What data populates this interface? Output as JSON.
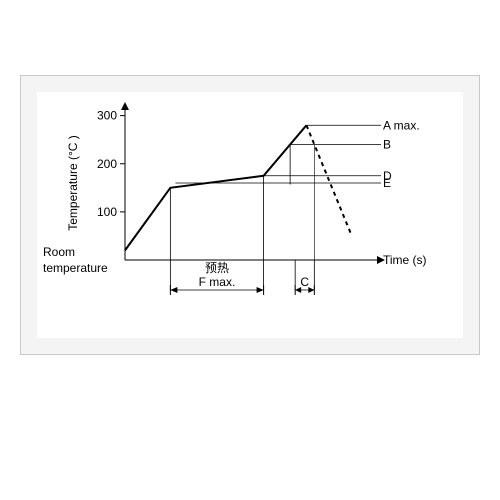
{
  "chart": {
    "type": "line",
    "background_color": "#ffffff",
    "frame_color": "#c8c8c8",
    "panel_bg": "#f4f4f4",
    "axis_color": "#000000",
    "line_color": "#000000",
    "yaxis_label": "Temperature (°C )",
    "xaxis_label": "Time (s)",
    "room_temp_label_l1": "Room",
    "room_temp_label_l2": "temperature",
    "yticks": [
      100,
      200,
      300
    ],
    "ylim": [
      0,
      320
    ],
    "label_fontsize": 12,
    "tick_fontsize": 12,
    "points": {
      "p0": {
        "x": 0.0,
        "temp": 20
      },
      "p1": {
        "x": 0.18,
        "temp": 150
      },
      "p2": {
        "x": 0.55,
        "temp": 175
      },
      "p3": {
        "x": 0.72,
        "temp": 280
      },
      "p4": {
        "x": 0.9,
        "temp": 50
      }
    },
    "ref_levels": {
      "A": 280,
      "B": 240,
      "D": 175,
      "E": 160
    },
    "annotations": {
      "A": "A max.",
      "B": "B",
      "C": "C",
      "D": "D",
      "E": "E",
      "F_top": "预热",
      "F_bot": "F max."
    }
  }
}
